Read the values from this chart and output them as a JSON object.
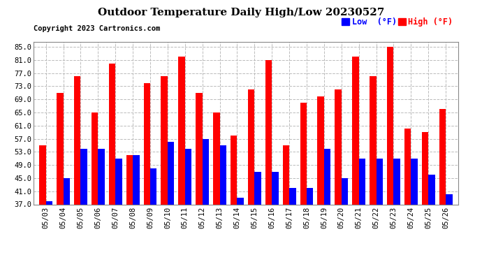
{
  "title": "Outdoor Temperature Daily High/Low 20230527",
  "copyright": "Copyright 2023 Cartronics.com",
  "legend_low_label": "Low  (°F)",
  "legend_high_label": "High (°F)",
  "dates": [
    "05/03",
    "05/04",
    "05/05",
    "05/06",
    "05/07",
    "05/08",
    "05/09",
    "05/10",
    "05/11",
    "05/12",
    "05/13",
    "05/14",
    "05/15",
    "05/16",
    "05/17",
    "05/18",
    "05/19",
    "05/20",
    "05/21",
    "05/22",
    "05/23",
    "05/24",
    "05/25",
    "05/26"
  ],
  "highs": [
    55.0,
    71.0,
    76.0,
    65.0,
    80.0,
    52.0,
    74.0,
    76.0,
    82.0,
    71.0,
    65.0,
    58.0,
    72.0,
    81.0,
    55.0,
    68.0,
    70.0,
    72.0,
    82.0,
    76.0,
    85.0,
    60.0,
    59.0,
    66.0
  ],
  "lows": [
    38.0,
    45.0,
    54.0,
    54.0,
    51.0,
    52.0,
    48.0,
    56.0,
    54.0,
    57.0,
    55.0,
    39.0,
    47.0,
    47.0,
    42.0,
    42.0,
    54.0,
    45.0,
    51.0,
    51.0,
    51.0,
    51.0,
    46.0,
    40.0
  ],
  "high_color": "#ff0000",
  "low_color": "#0000ff",
  "bg_color": "#ffffff",
  "grid_color": "#bbbbbb",
  "ylim_min": 37.0,
  "ylim_max": 86.5,
  "yticks": [
    37.0,
    41.0,
    45.0,
    49.0,
    53.0,
    57.0,
    61.0,
    65.0,
    69.0,
    73.0,
    77.0,
    81.0,
    85.0
  ],
  "title_fontsize": 11,
  "tick_fontsize": 7.5,
  "copyright_fontsize": 7.5
}
